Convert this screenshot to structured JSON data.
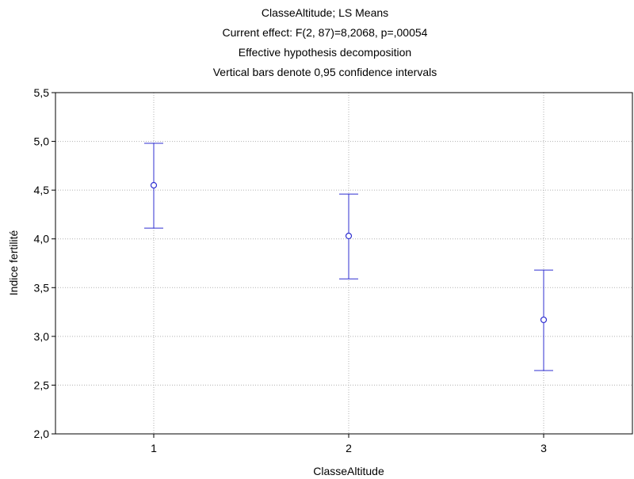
{
  "chart_data": {
    "type": "scatter",
    "title_lines": [
      "ClasseAltitude; LS Means",
      "Current effect: F(2, 87)=8,2068, p=,00054",
      "Effective hypothesis decomposition",
      "Vertical bars denote 0,95 confidence intervals"
    ],
    "xlabel": "ClasseAltitude",
    "ylabel": "Indice fertilité",
    "categories": [
      "1",
      "2",
      "3"
    ],
    "y_ticks": [
      "2,0",
      "2,5",
      "3,0",
      "3,5",
      "4,0",
      "4,5",
      "5,0",
      "5,5"
    ],
    "ylim": [
      2.0,
      5.5
    ],
    "grid": true,
    "legend": "none",
    "series": [
      {
        "means": [
          4.55,
          4.03,
          3.17
        ],
        "ci_lower": [
          4.11,
          3.59,
          2.65
        ],
        "ci_upper": [
          4.98,
          4.46,
          3.68
        ]
      }
    ],
    "colors": {
      "series": "#2f2fd0",
      "grid": "#b0b0b0",
      "axis": "#000000"
    }
  }
}
